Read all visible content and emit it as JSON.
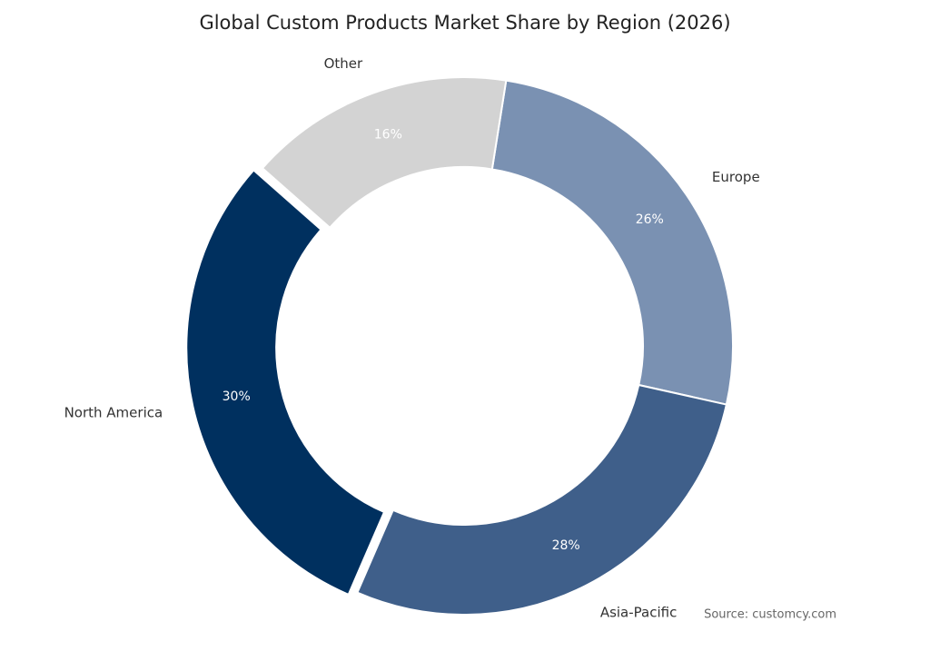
{
  "chart_data": {
    "type": "donut",
    "title": "Global Custom Products Market Share by Region (2026)",
    "categories": [
      "Europe",
      "Asia-Pacific",
      "North America",
      "Other"
    ],
    "values": [
      26,
      28,
      30,
      16
    ],
    "value_labels": [
      "26%",
      "28%",
      "30%",
      "16%"
    ],
    "colors": [
      "#7a91b2",
      "#3f5f8a",
      "#00305f",
      "#d3d3d3"
    ],
    "exploded": "North America",
    "source": "Source: customcy.com"
  }
}
